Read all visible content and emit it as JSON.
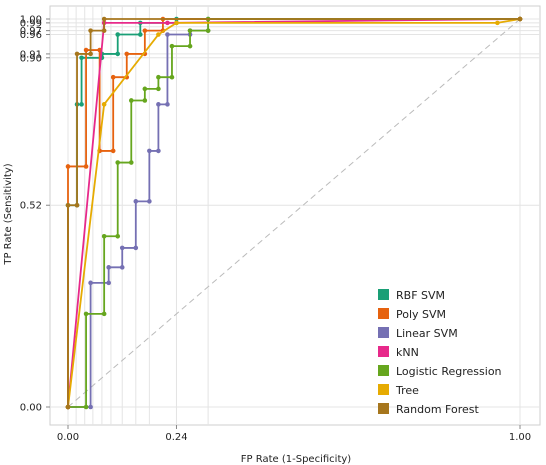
{
  "chart_data": {
    "type": "line",
    "title": "",
    "xlabel": "FP Rate (1-Specificity)",
    "ylabel": "TP Rate (Sensitivity)",
    "xlim": [
      0,
      1
    ],
    "ylim": [
      0,
      1
    ],
    "x_ticks": [
      {
        "value": 0.0,
        "label": "0.00"
      },
      {
        "value": 0.24,
        "label": "0.24"
      },
      {
        "value": 1.0,
        "label": "1.00"
      }
    ],
    "y_ticks": [
      {
        "value": 0.0,
        "label": "0.00"
      },
      {
        "value": 0.52,
        "label": "0.52"
      },
      {
        "value": 0.9,
        "label": "0.90"
      },
      {
        "value": 0.91,
        "label": "0.91"
      },
      {
        "value": 0.96,
        "label": "0.96"
      },
      {
        "value": 0.97,
        "label": "0.97"
      },
      {
        "value": 0.99,
        "label": "0.99"
      },
      {
        "value": 1.0,
        "label": "1.00"
      }
    ],
    "x_grid": [
      0.0,
      0.018,
      0.037,
      0.055,
      0.075,
      0.095,
      0.12,
      0.15,
      0.18,
      0.24,
      0.31,
      1.0
    ],
    "y_grid": [
      0.0,
      0.52,
      0.9,
      0.91,
      0.96,
      0.97,
      0.98,
      0.99,
      1.0
    ],
    "grid": true,
    "legend_position": "bottom-right",
    "diagonal": {
      "x": [
        0,
        1
      ],
      "y": [
        0,
        1
      ],
      "color": "#bbbbbb"
    },
    "series": [
      {
        "name": "RBF SVM",
        "color": "#1a9f76",
        "x": [
          0,
          0,
          0.02,
          0.02,
          0.03,
          0.03,
          0.075,
          0.075,
          0.11,
          0.11,
          0.16,
          0.16,
          0.24,
          0.24,
          1.0
        ],
        "y": [
          0,
          0.52,
          0.52,
          0.78,
          0.78,
          0.9,
          0.9,
          0.91,
          0.91,
          0.96,
          0.96,
          0.99,
          0.99,
          1.0,
          1.0
        ]
      },
      {
        "name": "Poly SVM",
        "color": "#e6620f",
        "x": [
          0,
          0,
          0.04,
          0.04,
          0.07,
          0.07,
          0.1,
          0.1,
          0.13,
          0.13,
          0.17,
          0.17,
          0.21,
          0.21,
          1.0
        ],
        "y": [
          0,
          0.62,
          0.62,
          0.92,
          0.92,
          0.66,
          0.66,
          0.85,
          0.85,
          0.91,
          0.91,
          0.97,
          0.97,
          1.0,
          1.0
        ]
      },
      {
        "name": "Linear SVM",
        "color": "#7570b3",
        "x": [
          0,
          0.05,
          0.05,
          0.09,
          0.09,
          0.12,
          0.12,
          0.15,
          0.15,
          0.18,
          0.18,
          0.2,
          0.2,
          0.22,
          0.22,
          0.27,
          0.27,
          0.31,
          0.31,
          1.0
        ],
        "y": [
          0,
          0,
          0.32,
          0.32,
          0.36,
          0.36,
          0.41,
          0.41,
          0.53,
          0.53,
          0.66,
          0.66,
          0.78,
          0.78,
          0.96,
          0.96,
          0.97,
          0.97,
          1.0,
          1.0
        ]
      },
      {
        "name": "kNN",
        "color": "#e7298a",
        "x": [
          0,
          0.08,
          0.22,
          1.0
        ],
        "y": [
          0,
          0.99,
          0.99,
          1.0
        ]
      },
      {
        "name": "Logistic Regression",
        "color": "#66a61e",
        "x": [
          0,
          0.04,
          0.04,
          0.08,
          0.08,
          0.11,
          0.11,
          0.14,
          0.14,
          0.17,
          0.17,
          0.2,
          0.2,
          0.23,
          0.23,
          0.27,
          0.27,
          0.31,
          0.31,
          1.0
        ],
        "y": [
          0,
          0,
          0.24,
          0.24,
          0.44,
          0.44,
          0.63,
          0.63,
          0.79,
          0.79,
          0.82,
          0.82,
          0.85,
          0.85,
          0.93,
          0.93,
          0.97,
          0.97,
          1.0,
          1.0
        ]
      },
      {
        "name": "Tree",
        "color": "#e6ab02",
        "x": [
          0,
          0.08,
          0.2,
          0.24,
          0.95,
          1.0
        ],
        "y": [
          0,
          0.78,
          0.96,
          0.99,
          0.99,
          1.0
        ]
      },
      {
        "name": "Random Forest",
        "color": "#a6761d",
        "x": [
          0,
          0,
          0.02,
          0.02,
          0.05,
          0.05,
          0.08,
          0.08,
          1.0
        ],
        "y": [
          0,
          0.52,
          0.52,
          0.91,
          0.91,
          0.97,
          0.97,
          1.0,
          1.0
        ]
      }
    ]
  }
}
